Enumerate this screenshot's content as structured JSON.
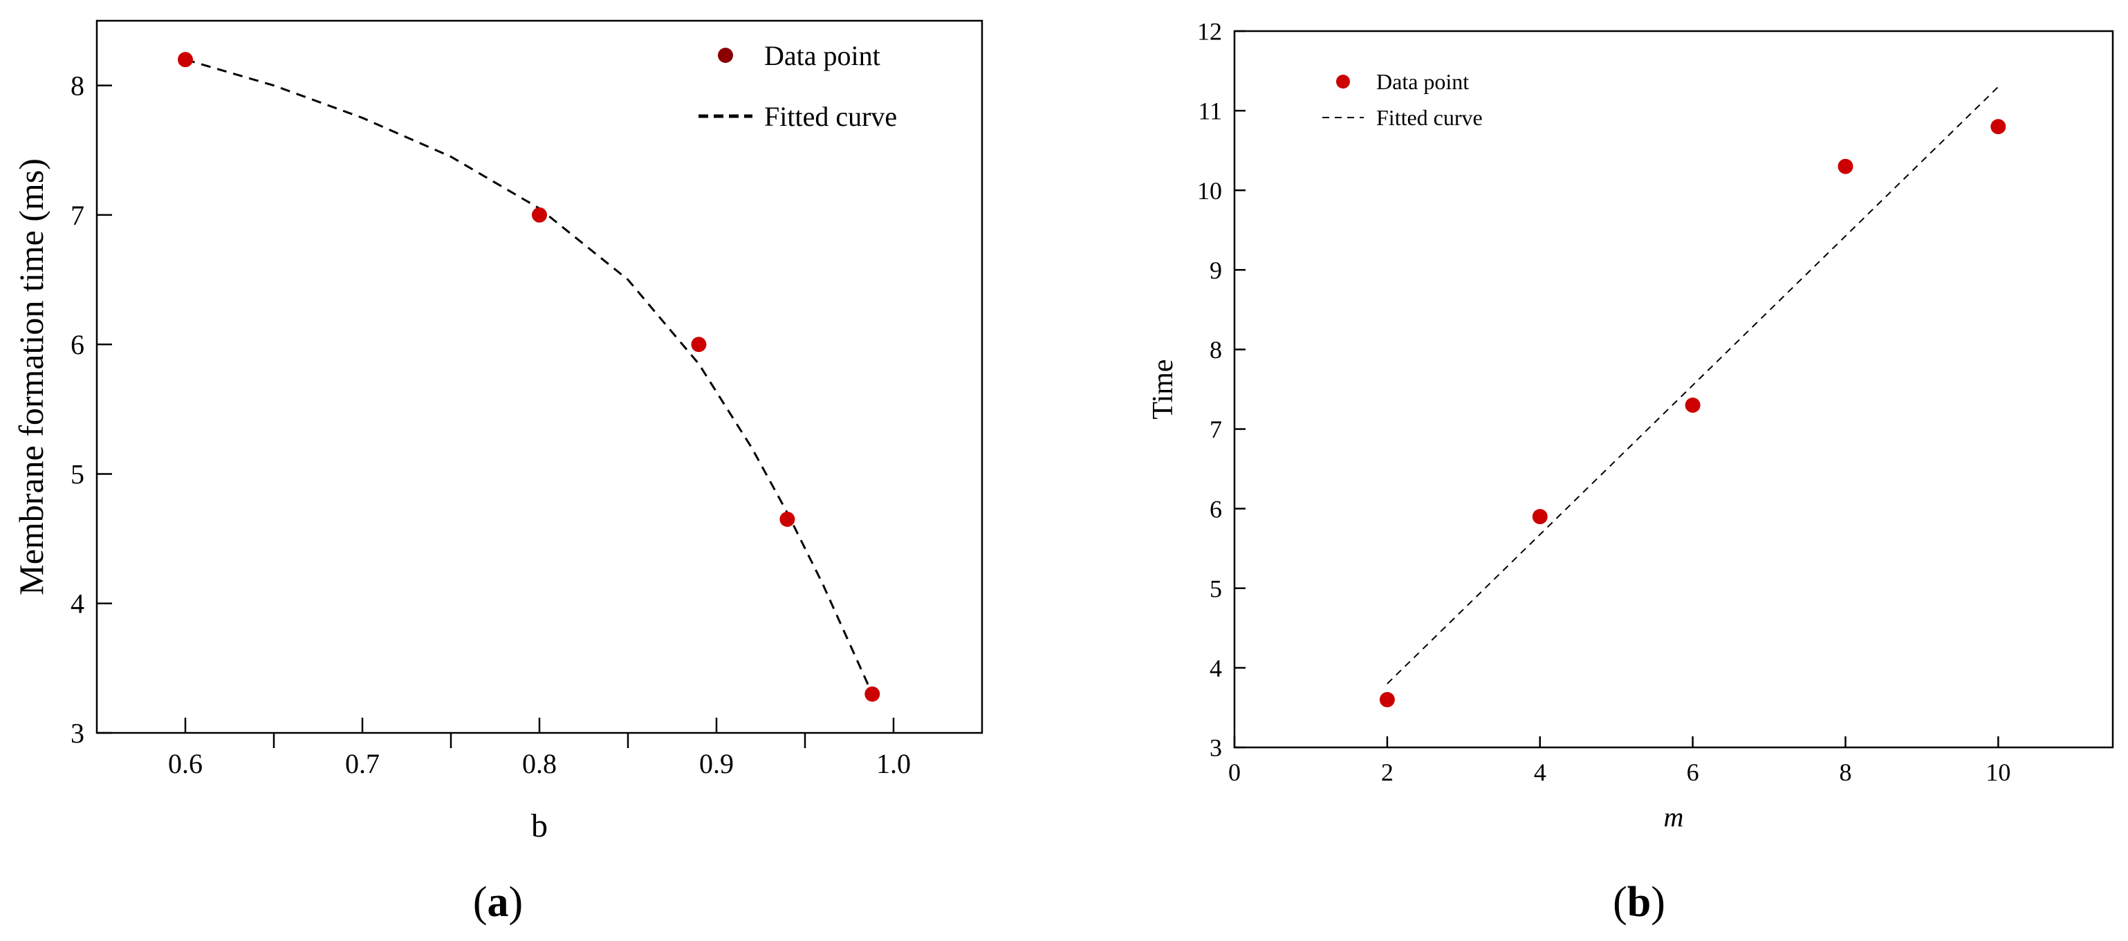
{
  "chart_data": [
    {
      "panel_label": "(a)",
      "type": "scatter",
      "xlabel": "b",
      "ylabel": "Membrane formation time (ms)",
      "xlim": [
        0.55,
        1.05
      ],
      "ylim": [
        3,
        8.5
      ],
      "xticks": [
        0.6,
        0.7,
        0.8,
        0.9,
        1.0
      ],
      "xtick_labels": [
        "0.6",
        "0.7",
        "0.8",
        "0.9",
        "1.0"
      ],
      "xminor": [
        0.65,
        0.75,
        0.85,
        0.95
      ],
      "yticks": [
        3,
        4,
        5,
        6,
        7,
        8
      ],
      "ytick_labels": [
        "3",
        "4",
        "5",
        "6",
        "7",
        "8"
      ],
      "grid": false,
      "legend_position": "top-right",
      "series": [
        {
          "name": "Data point",
          "kind": "points",
          "color": "#cc0000",
          "x": [
            0.6,
            0.8,
            0.89,
            0.94,
            0.988
          ],
          "y": [
            8.2,
            7.0,
            6.0,
            4.65,
            3.3
          ]
        },
        {
          "name": "Fitted curve",
          "kind": "dashed-line",
          "color": "#000000",
          "x": [
            0.6,
            0.65,
            0.7,
            0.75,
            0.8,
            0.85,
            0.89,
            0.92,
            0.94,
            0.96,
            0.988
          ],
          "y": [
            8.2,
            8.0,
            7.75,
            7.45,
            7.05,
            6.5,
            5.85,
            5.2,
            4.7,
            4.15,
            3.3
          ]
        }
      ],
      "legend_entries": [
        {
          "label": "Data point",
          "symbol": "circle",
          "color": "#8b0000"
        },
        {
          "label": "Fitted curve",
          "symbol": "dash",
          "color": "#000000"
        }
      ]
    },
    {
      "panel_label": "(b)",
      "type": "scatter",
      "xlabel": "m",
      "ylabel": "Time",
      "xlim": [
        0,
        11.5
      ],
      "ylim": [
        3,
        12
      ],
      "xticks": [
        0,
        2,
        4,
        6,
        8,
        10
      ],
      "xtick_labels": [
        "0",
        "2",
        "4",
        "6",
        "8",
        "10"
      ],
      "yticks": [
        3,
        4,
        5,
        6,
        7,
        8,
        9,
        10,
        11,
        12
      ],
      "ytick_labels": [
        "3",
        "4",
        "5",
        "6",
        "7",
        "8",
        "9",
        "10",
        "11",
        "12"
      ],
      "grid": false,
      "legend_position": "top-left",
      "series": [
        {
          "name": "Data point",
          "kind": "points",
          "color": "#cc0000",
          "x": [
            2,
            4,
            6,
            8,
            10
          ],
          "y": [
            3.6,
            5.9,
            7.3,
            10.3,
            10.8
          ]
        },
        {
          "name": "Fitted curve",
          "kind": "dashed-line",
          "color": "#000000",
          "x": [
            2,
            10
          ],
          "y": [
            3.8,
            11.3
          ]
        }
      ],
      "legend_entries": [
        {
          "label": "Data point",
          "symbol": "circle",
          "color": "#cc0000"
        },
        {
          "label": "Fitted curve",
          "symbol": "dash",
          "color": "#000000"
        }
      ]
    }
  ]
}
